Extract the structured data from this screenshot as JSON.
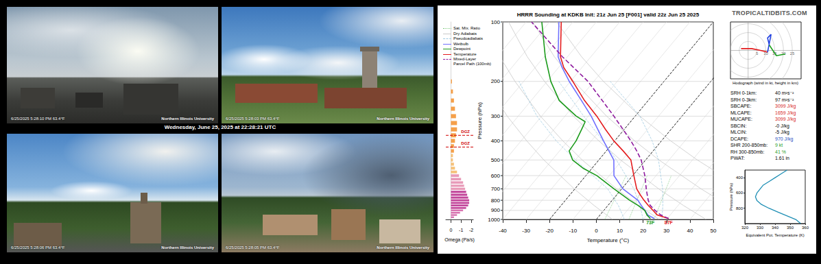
{
  "photos": [
    {
      "timestamp": "6/25/2025 5:28:10 PM 63.4°F",
      "credit": "Northern Illinois University"
    },
    {
      "timestamp": "6/25/2025 5:28:03 PM 63.4°F",
      "credit": "Northern Illinois University"
    },
    {
      "timestamp": "6/25/2025 5:28:06 PM 63.4°F",
      "credit": "Northern Illinois University"
    },
    {
      "timestamp": "6/25/2025 5:28:05 PM 63.4°F",
      "credit": "Northern Illinois University"
    }
  ],
  "caption": "Wednesday, June 25, 2025 at 22:28:21 UTC",
  "site": "TROPICALTIDBITS.COM",
  "parameters": [
    {
      "label": "SRH 0-1km:",
      "value": "40 m²s⁻²",
      "color": "#000000"
    },
    {
      "label": "SRH 0-3km:",
      "value": "97 m²s⁻²",
      "color": "#000000"
    },
    {
      "label": "SBCAPE:",
      "value": "3099 J/kg",
      "color": "#d62728"
    },
    {
      "label": "MLCAPE:",
      "value": "1659 J/kg",
      "color": "#d62728"
    },
    {
      "label": "MUCAPE:",
      "value": "3099 J/kg",
      "color": "#d62728"
    },
    {
      "label": "SBCIN:",
      "value": "-0 J/kg",
      "color": "#000000"
    },
    {
      "label": "MLCIN:",
      "value": "-5 J/kg",
      "color": "#000000"
    },
    {
      "label": "DCAPE:",
      "value": "970 J/kg",
      "color": "#1f4fbf"
    },
    {
      "label": "SHR 200-850mb:",
      "value": "9 kt",
      "color": "#2ca02c"
    },
    {
      "label": "RH 300-850mb:",
      "value": "41 %",
      "color": "#2ca02c"
    },
    {
      "label": "PWAT:",
      "value": "1.61 in",
      "color": "#000000"
    }
  ],
  "chart_data": [
    {
      "type": "skew-t",
      "title": "HRRR Sounding at KDKB Init: 21z Jun 25 [F001] valid 22z Jun 25 2025",
      "x_label": "Temperature (°C)",
      "y_label": "Pressure (hPa)",
      "xlim": [
        -40,
        50
      ],
      "xticks": [
        -40,
        -30,
        -20,
        -10,
        0,
        10,
        20,
        30,
        40,
        50
      ],
      "ylim": [
        1000,
        100
      ],
      "yticks": [
        1000,
        900,
        800,
        700,
        600,
        500,
        400,
        300,
        200,
        100
      ],
      "log": "y",
      "grid": true,
      "legend": "upper left",
      "dashed_isotherms": [
        -20,
        0
      ],
      "series": [
        {
          "name": "Sat. Mix. Ratio",
          "color": "#7fc97f",
          "line_style": "dotted",
          "lines": [
            [
              [
                3.6,
                1000
              ],
              [
                -2.8,
                600
              ]
            ],
            [
              [
                13.9,
                1000
              ],
              [
                6.2,
                600
              ]
            ],
            [
              [
                24.7,
                1000
              ],
              [
                16.5,
                600
              ]
            ]
          ]
        },
        {
          "name": "Dry Adiabats",
          "color": "#c8c8c8",
          "line_style": "solid",
          "lines": [
            [
              [
                6.9,
                1000
              ],
              [
                -5.9,
                850
              ],
              [
                -20.3,
                700
              ],
              [
                -43.5,
                500
              ],
              [
                -57.6,
                400
              ],
              [
                -74.7,
                300
              ],
              [
                -96.4,
                200
              ],
              [
                -110.5,
                150
              ],
              [
                -128.2,
                100
              ]
            ],
            [
              [
                26.9,
                1000
              ],
              [
                13.2,
                850
              ],
              [
                -2.2,
                700
              ],
              [
                -27.1,
                500
              ],
              [
                -42.2,
                400
              ],
              [
                -60.5,
                300
              ],
              [
                -83.7,
                200
              ],
              [
                -98.9,
                150
              ],
              [
                -117.9,
                100
              ]
            ],
            [
              [
                46.9,
                1000
              ],
              [
                32.3,
                850
              ],
              [
                15.8,
                700
              ],
              [
                -10.7,
                500
              ],
              [
                -26.8,
                400
              ],
              [
                -46.4,
                300
              ],
              [
                -71.1,
                200
              ],
              [
                -87.2,
                150
              ],
              [
                -107.5,
                100
              ]
            ],
            [
              [
                66.9,
                1000
              ],
              [
                51.4,
                850
              ],
              [
                33.9,
                700
              ],
              [
                5.7,
                500
              ],
              [
                -11.5,
                400
              ],
              [
                -32.2,
                300
              ],
              [
                -58.5,
                200
              ],
              [
                -75.6,
                150
              ],
              [
                -97.2,
                100
              ]
            ],
            [
              [
                86.9,
                1000
              ],
              [
                70.5,
                850
              ],
              [
                51.9,
                700
              ],
              [
                22.1,
                500
              ],
              [
                3.9,
                400
              ],
              [
                -18.0,
                300
              ],
              [
                -45.9,
                200
              ],
              [
                -64.0,
                150
              ],
              [
                -87.0,
                100
              ]
            ]
          ]
        },
        {
          "name": "Pseudoadiabats",
          "color": "#9ecae1",
          "line_style": "dashed",
          "lines": [
            [
              [
                12,
                1000
              ],
              [
                4.5,
                850
              ],
              [
                -6,
                700
              ],
              [
                -30,
                500
              ],
              [
                -45,
                400
              ],
              [
                -62,
                300
              ],
              [
                -82,
                200
              ]
            ],
            [
              [
                20,
                1000
              ],
              [
                13.7,
                850
              ],
              [
                5.2,
                700
              ],
              [
                -12.5,
                500
              ],
              [
                -25,
                400
              ],
              [
                -42,
                300
              ],
              [
                -65,
                200
              ]
            ],
            [
              [
                28,
                1000
              ],
              [
                23.5,
                850
              ],
              [
                17.5,
                700
              ],
              [
                5.5,
                500
              ],
              [
                -4,
                400
              ],
              [
                -18,
                300
              ],
              [
                -43,
                200
              ]
            ]
          ]
        },
        {
          "name": "Wetbulb",
          "color": "#7070ff",
          "line_style": "solid",
          "values": [
            [
              24.5,
              990
            ],
            [
              20.5,
              950
            ],
            [
              17.5,
              900
            ],
            [
              14.3,
              850
            ],
            [
              11,
              800
            ],
            [
              0.5,
              700
            ],
            [
              -8,
              600
            ],
            [
              -13.6,
              500
            ],
            [
              -24.8,
              400
            ],
            [
              -38.8,
              300
            ],
            [
              -48.5,
              250
            ],
            [
              -60.5,
              200
            ],
            [
              -68.5,
              170
            ],
            [
              -74,
              150
            ],
            [
              -86,
              100
            ]
          ]
        },
        {
          "name": "Dewpoint",
          "color": "#1a9a1a",
          "line_style": "solid",
          "values": [
            [
              22.8,
              990
            ],
            [
              20.1,
              950
            ],
            [
              17.5,
              900
            ],
            [
              12.9,
              850
            ],
            [
              7.5,
              800
            ],
            [
              -3.3,
              700
            ],
            [
              -15.3,
              600
            ],
            [
              -23.9,
              550
            ],
            [
              -31.2,
              500
            ],
            [
              -35.9,
              450
            ],
            [
              -36.5,
              400
            ],
            [
              -38.2,
              350
            ],
            [
              -39.4,
              320
            ],
            [
              -45.2,
              300
            ],
            [
              -58,
              250
            ],
            [
              -68.4,
              200
            ],
            [
              -79.5,
              150
            ],
            [
              -93.3,
              100
            ]
          ]
        },
        {
          "name": "Temperature",
          "color": "#e41a1c",
          "line_style": "solid",
          "values": [
            [
              30.6,
              990
            ],
            [
              24.5,
              950
            ],
            [
              21.0,
              900
            ],
            [
              17.3,
              850
            ],
            [
              13.6,
              800
            ],
            [
              10.0,
              750
            ],
            [
              6.4,
              700
            ],
            [
              0.5,
              600
            ],
            [
              -6.3,
              500
            ],
            [
              -12.8,
              450
            ],
            [
              -20.4,
              400
            ],
            [
              -28,
              350
            ],
            [
              -36.4,
              300
            ],
            [
              -47.2,
              250
            ],
            [
              -59,
              200
            ],
            [
              -67.8,
              170
            ],
            [
              -73,
              150
            ],
            [
              -85,
              100
            ]
          ]
        },
        {
          "name": "Mixed-Layer Parcel Path (100mb)",
          "color": "#8e1a9e",
          "line_style": "dashed",
          "values": [
            [
              30.6,
              990
            ],
            [
              26,
              950
            ],
            [
              21.9,
              900
            ],
            [
              18.1,
              850
            ],
            [
              15.4,
              800
            ],
            [
              13,
              750
            ],
            [
              10.5,
              700
            ],
            [
              5.2,
              600
            ],
            [
              -1.9,
              500
            ],
            [
              -7,
              450
            ],
            [
              -13.1,
              400
            ],
            [
              -20.5,
              350
            ],
            [
              -29.1,
              300
            ],
            [
              -39.6,
              250
            ],
            [
              -52.5,
              200
            ],
            [
              -72.2,
              150
            ],
            [
              -97.7,
              100
            ]
          ]
        }
      ],
      "annotations": [
        {
          "text": "73F",
          "series": "Dewpoint"
        },
        {
          "text": "87F",
          "series": "Temperature"
        }
      ]
    },
    {
      "type": "bar",
      "orientation": "horizontal",
      "x_label": "Omega (Pa/s)",
      "xlim": [
        0.5,
        -2.2
      ],
      "xticks": [
        -2,
        -1,
        0
      ],
      "ylim": [
        1000,
        100
      ],
      "log": "y",
      "tick_labels": "x",
      "y": [
        200,
        225,
        250,
        275,
        300,
        325,
        350,
        375,
        400,
        425,
        450,
        475,
        500,
        525,
        550,
        575,
        600,
        625,
        650,
        675,
        700,
        725,
        750,
        775,
        800,
        825,
        850,
        875,
        900,
        925,
        950,
        975
      ],
      "values": [
        -0.1,
        -0.2,
        -0.3,
        -0.4,
        -0.5,
        -0.6,
        -0.6,
        -0.5,
        -0.4,
        -0.3,
        -0.3,
        -0.2,
        -0.2,
        -0.3,
        -0.4,
        -0.6,
        -0.8,
        -1.0,
        -1.2,
        -1.3,
        -1.4,
        -1.5,
        -1.6,
        -1.7,
        -1.8,
        -1.8,
        -1.7,
        -1.5,
        -1.2,
        -0.9,
        -0.6,
        -0.3
      ],
      "colors": [
        "#f5a04a",
        "#f5a04a",
        "#f5a04a",
        "#f5a04a",
        "#f5a04a",
        "#f5a04a",
        "#f5a04a",
        "#f5a04a",
        "#f5a04a",
        "#f5a04a",
        "#f5a04a",
        "#f6c27a",
        "#f6c27a",
        "#f6c27a",
        "#f6c27a",
        "#f6c27a",
        "#e89ab8",
        "#e89ab8",
        "#e89ab8",
        "#e89ab8",
        "#e89ab8",
        "#c2459a",
        "#c2459a",
        "#c2459a",
        "#c2459a",
        "#c2459a",
        "#c2459a",
        "#c2459a",
        "#d873b0",
        "#d873b0",
        "#d873b0",
        "#d873b0"
      ],
      "annotations": [
        {
          "text": "DGZ",
          "y": 430,
          "color": "#d00000"
        },
        {
          "text": "DGZ",
          "y": 375,
          "color": "#d00000"
        }
      ]
    },
    {
      "type": "line",
      "caption": "Hodograph (wind in kt, height in km)",
      "xlim": [
        -10,
        30
      ],
      "ylim": [
        -16,
        16
      ],
      "tick_labels": false,
      "rings": [
        5,
        10,
        15,
        20,
        25
      ],
      "series": [
        {
          "color": "#e41a1c",
          "values": [
            [
              -4,
              1
            ],
            [
              2,
              1
            ],
            [
              7,
              0
            ],
            [
              11,
              -1
            ]
          ]
        },
        {
          "color": "#2040e0",
          "values": [
            [
              11,
              -1
            ],
            [
              12,
              4
            ],
            [
              13,
              9
            ],
            [
              11,
              7
            ],
            [
              12,
              3
            ]
          ]
        },
        {
          "color": "#20a020",
          "values": [
            [
              12,
              3
            ],
            [
              16,
              -3
            ],
            [
              21,
              -2
            ]
          ]
        }
      ]
    },
    {
      "type": "line",
      "x_label": "Equivalent Pot. Temperature (K)",
      "y_label": "Pressure (hPa)",
      "xlim": [
        320,
        360
      ],
      "xticks": [
        320,
        330,
        340,
        350,
        360
      ],
      "ylim": [
        1000,
        300
      ],
      "yticks": [
        400,
        600,
        800
      ],
      "color": "#1f8fb5",
      "values": [
        [
          357,
          1000
        ],
        [
          354,
          950
        ],
        [
          348,
          900
        ],
        [
          342,
          850
        ],
        [
          336,
          800
        ],
        [
          331,
          750
        ],
        [
          328,
          700
        ],
        [
          327,
          650
        ],
        [
          328,
          600
        ],
        [
          330,
          550
        ],
        [
          332,
          500
        ],
        [
          336,
          450
        ],
        [
          340,
          400
        ],
        [
          344,
          350
        ],
        [
          348,
          300
        ]
      ]
    }
  ]
}
